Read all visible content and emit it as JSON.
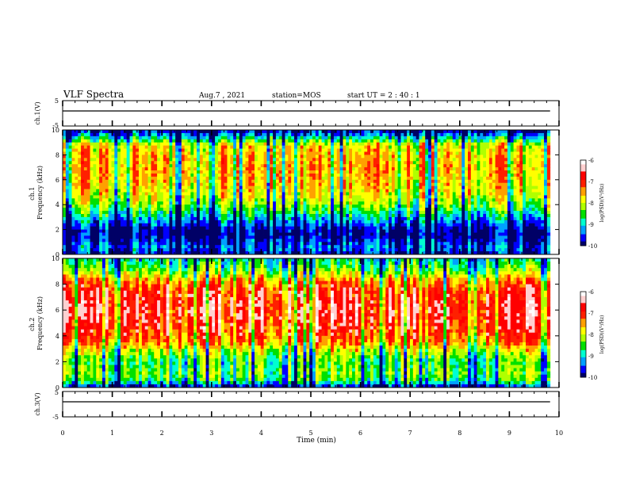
{
  "header": {
    "title": "VLF Spectra",
    "date": "Aug.7 , 2021",
    "station": "station=MOS",
    "start": "start UT = 2 : 40 : 1"
  },
  "chart_data": [
    {
      "type": "line",
      "panel": "ch1-waveform",
      "ylabel": "ch.1(V)",
      "ylim": [
        -5,
        5
      ],
      "yticks": [
        "5",
        "-5"
      ],
      "xlim": [
        0,
        10
      ],
      "series": [
        {
          "x": [
            0,
            9.82
          ],
          "y": [
            0,
            0
          ]
        }
      ]
    },
    {
      "type": "heatmap",
      "panel": "ch1-spectrogram",
      "ylabel": "ch.1\nFrequency (kHz)",
      "ylim": [
        0,
        10
      ],
      "yticks": [
        "0",
        "2",
        "4",
        "6",
        "8",
        "10"
      ],
      "xlim": [
        0,
        10
      ],
      "data_end_min": 9.82,
      "colorbar": {
        "label": "log(PSD)(V²/Hz)",
        "range": [
          -10,
          -6
        ],
        "ticks": [
          "-6",
          "-7",
          "-8",
          "-9",
          "-10"
        ]
      },
      "band_profile_log_psd": [
        {
          "f": 0.0,
          "v": -9.8
        },
        {
          "f": 0.5,
          "v": -9.3
        },
        {
          "f": 1.0,
          "v": -9.6
        },
        {
          "f": 1.6,
          "v": -9.9
        },
        {
          "f": 2.0,
          "v": -9.8
        },
        {
          "f": 2.5,
          "v": -9.4
        },
        {
          "f": 3.0,
          "v": -9.0
        },
        {
          "f": 3.5,
          "v": -8.6
        },
        {
          "f": 4.0,
          "v": -8.2
        },
        {
          "f": 5.0,
          "v": -7.8
        },
        {
          "f": 6.0,
          "v": -7.6
        },
        {
          "f": 7.0,
          "v": -7.5
        },
        {
          "f": 8.0,
          "v": -7.6
        },
        {
          "f": 8.8,
          "v": -7.8
        },
        {
          "f": 9.2,
          "v": -8.6
        },
        {
          "f": 9.6,
          "v": -9.3
        },
        {
          "f": 10.0,
          "v": -9.9
        }
      ]
    },
    {
      "type": "heatmap",
      "panel": "ch2-spectrogram",
      "ylabel": "ch.2\nFrequency (kHz)",
      "ylim": [
        0,
        10
      ],
      "yticks": [
        "0",
        "2",
        "4",
        "6",
        "8",
        "10"
      ],
      "xlim": [
        0,
        10
      ],
      "data_end_min": 9.82,
      "colorbar": {
        "label": "log(PSD)(V²/Hz)",
        "range": [
          -10,
          -6
        ],
        "ticks": [
          "-6",
          "-7",
          "-8",
          "-9",
          "-10"
        ]
      },
      "band_profile_log_psd": [
        {
          "f": 0.0,
          "v": -9.9
        },
        {
          "f": 0.5,
          "v": -8.6
        },
        {
          "f": 1.0,
          "v": -8.3
        },
        {
          "f": 2.0,
          "v": -8.5
        },
        {
          "f": 2.8,
          "v": -8.0
        },
        {
          "f": 3.5,
          "v": -7.3
        },
        {
          "f": 4.5,
          "v": -6.9
        },
        {
          "f": 5.5,
          "v": -6.7
        },
        {
          "f": 6.5,
          "v": -6.7
        },
        {
          "f": 7.5,
          "v": -6.9
        },
        {
          "f": 8.2,
          "v": -7.3
        },
        {
          "f": 8.8,
          "v": -8.0
        },
        {
          "f": 9.3,
          "v": -8.5
        },
        {
          "f": 10.0,
          "v": -8.8
        }
      ]
    },
    {
      "type": "line",
      "panel": "ch3-waveform",
      "ylabel": "ch.3(V)",
      "ylim": [
        -5,
        5
      ],
      "yticks": [
        "5",
        "-5"
      ],
      "xlim": [
        0,
        10
      ],
      "xlabel": "Time (min)",
      "xticks": [
        "0",
        "1",
        "2",
        "3",
        "4",
        "5",
        "6",
        "7",
        "8",
        "9",
        "10"
      ],
      "series": [
        {
          "x": [
            0,
            9.82
          ],
          "y": [
            0,
            0
          ]
        }
      ]
    }
  ],
  "colormap": [
    "#000066",
    "#0000ff",
    "#00a0ff",
    "#00ffd0",
    "#00e000",
    "#b0ff00",
    "#ffff00",
    "#ffa000",
    "#ff2000",
    "#ff0000",
    "#ffd0d0",
    "#ffffff"
  ]
}
